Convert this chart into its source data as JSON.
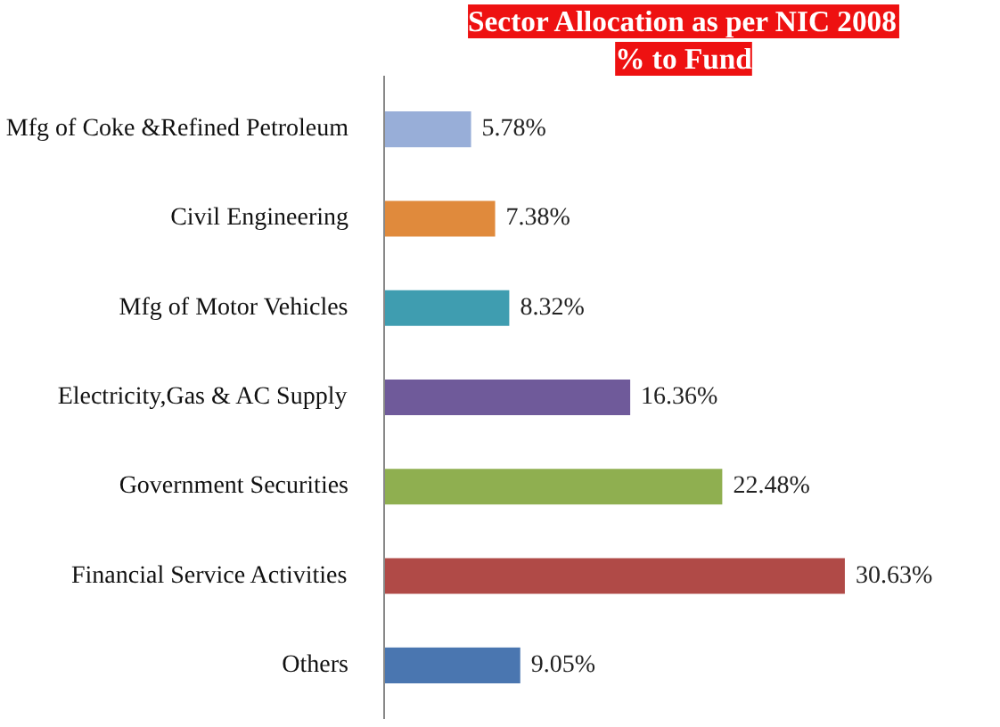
{
  "chart_data": {
    "type": "bar",
    "orientation": "horizontal",
    "title": "Sector Allocation as per NIC 2008",
    "subtitle": "% to Fund",
    "categories": [
      "Mfg of Coke &Refined Petroleum",
      "Civil Engineering",
      "Mfg of Motor Vehicles",
      "Electricity,Gas & AC Supply",
      "Government Securities",
      "Financial Service Activities",
      "Others"
    ],
    "values": [
      5.78,
      7.38,
      8.32,
      16.36,
      22.48,
      30.63,
      9.05
    ],
    "value_labels": [
      "5.78%",
      "7.38%",
      "8.32%",
      "16.36%",
      "22.48%",
      "30.63%",
      "9.05%"
    ],
    "colors": [
      "#98aed8",
      "#e08a3c",
      "#3f9db0",
      "#6f5a9a",
      "#8faf50",
      "#b04a47",
      "#4a76b0"
    ],
    "grid": false
  }
}
